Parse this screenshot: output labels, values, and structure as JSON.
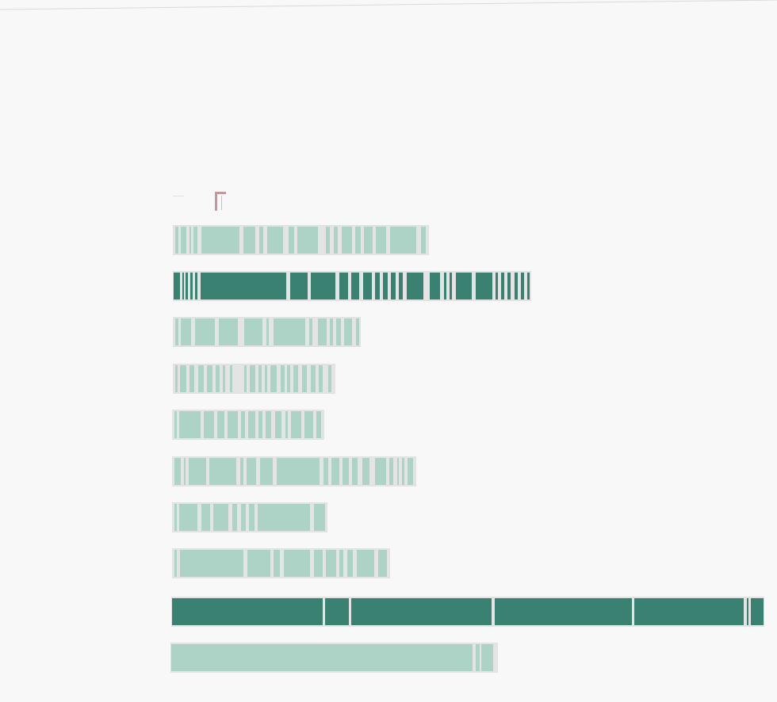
{
  "colors": {
    "background": "#f8f8f8",
    "bar_light": "#add3c7",
    "bar_dark": "#3b8172",
    "separator": "#e4e4e4",
    "corner_mark": "#c4969d"
  },
  "header": {
    "icons": [
      "dash-icon",
      "corner-bracket-icon"
    ]
  },
  "rows": [
    {
      "name": "bar-row-1",
      "tone": "light",
      "selected": false,
      "fill_pct": 43
    },
    {
      "name": "bar-row-2",
      "tone": "dark",
      "selected": true,
      "fill_pct": 60
    },
    {
      "name": "bar-row-3",
      "tone": "light",
      "selected": false,
      "fill_pct": 32
    },
    {
      "name": "bar-row-4",
      "tone": "light",
      "selected": false,
      "fill_pct": 28
    },
    {
      "name": "bar-row-5",
      "tone": "light",
      "selected": false,
      "fill_pct": 26
    },
    {
      "name": "bar-row-6",
      "tone": "light",
      "selected": false,
      "fill_pct": 41
    },
    {
      "name": "bar-row-7",
      "tone": "light",
      "selected": false,
      "fill_pct": 26
    },
    {
      "name": "bar-row-8",
      "tone": "light",
      "selected": false,
      "fill_pct": 37
    },
    {
      "name": "bar-row-9",
      "tone": "dark",
      "selected": true,
      "fill_pct": 100
    },
    {
      "name": "bar-row-10",
      "tone": "light",
      "selected": false,
      "fill_pct": 55
    }
  ]
}
